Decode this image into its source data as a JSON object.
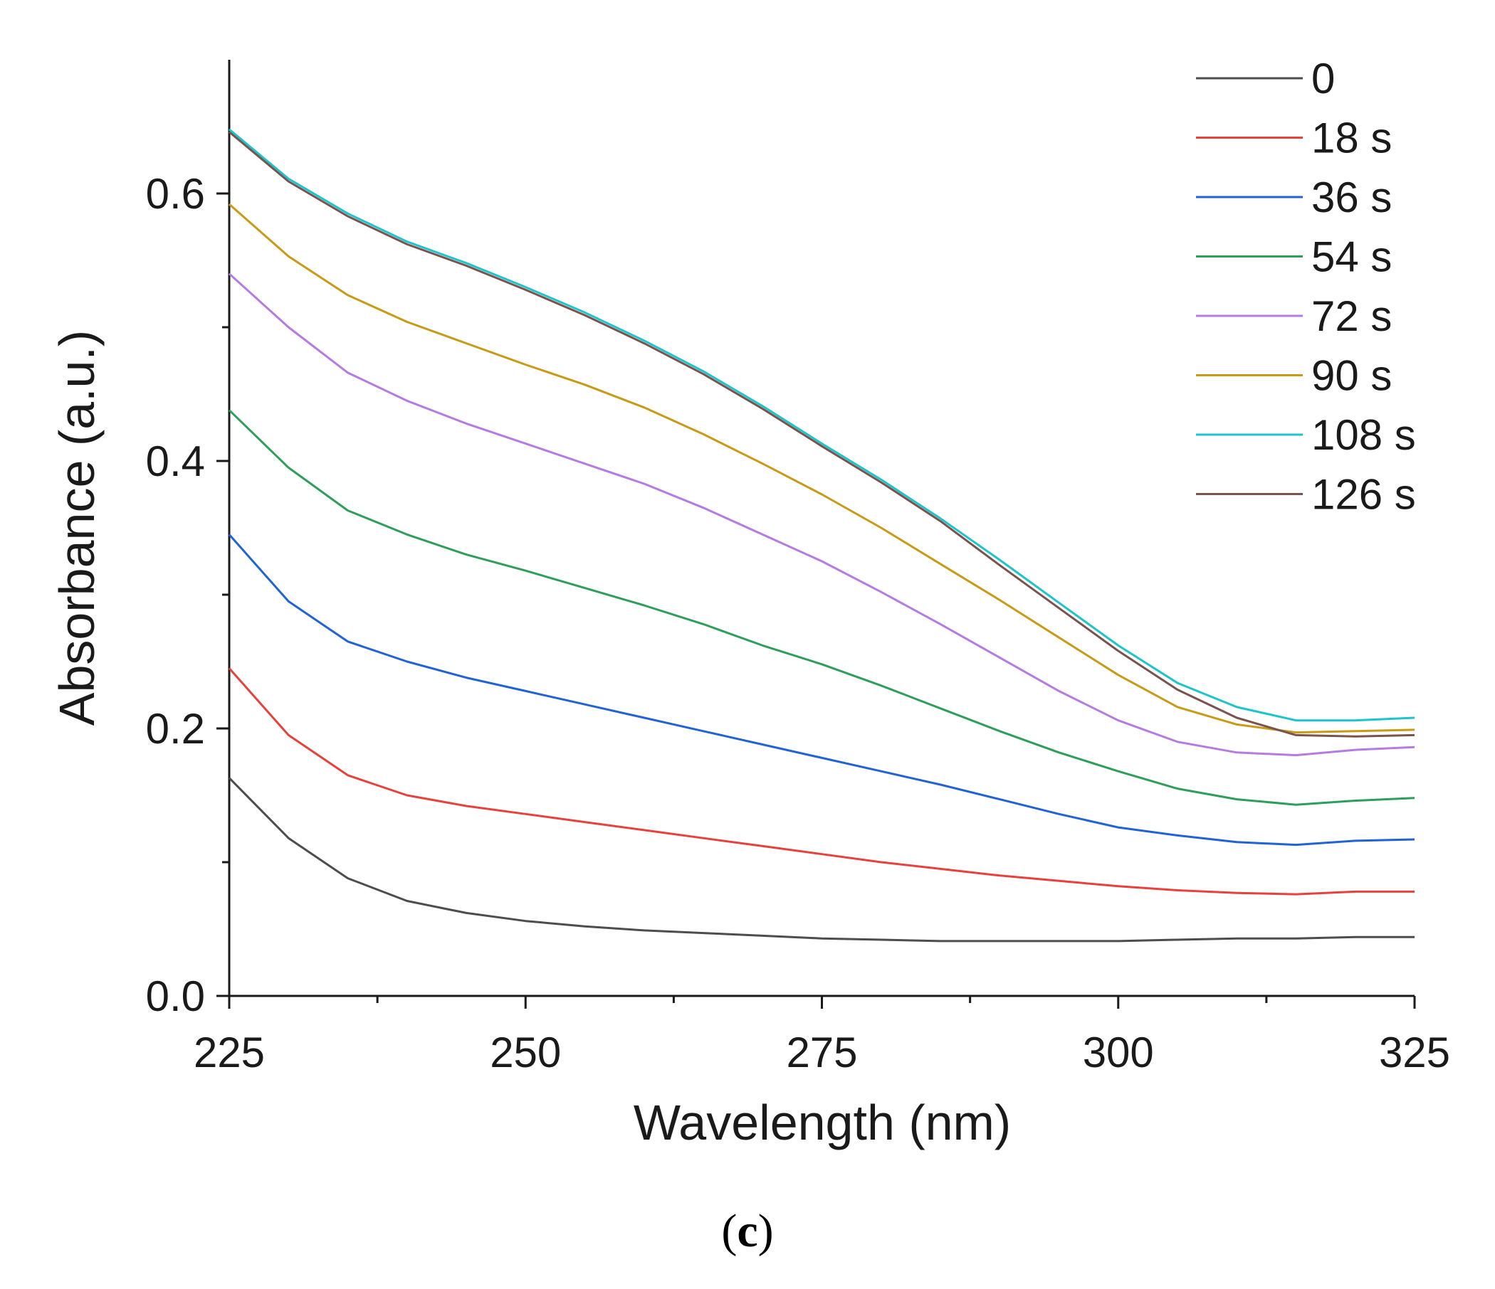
{
  "chart_data": {
    "type": "line",
    "xlabel": "Wavelength (nm)",
    "ylabel": "Absorbance (a.u.)",
    "xlim": [
      225,
      325
    ],
    "ylim": [
      0,
      0.7
    ],
    "x_ticks": [
      225,
      250,
      275,
      300,
      325
    ],
    "x_tick_labels": [
      "225",
      "250",
      "275",
      "300",
      "325"
    ],
    "x_minor_ticks": [
      237.5,
      262.5,
      287.5,
      312.5
    ],
    "y_ticks": [
      0,
      0.2,
      0.4,
      0.6
    ],
    "y_tick_labels": [
      "0.0",
      "0.2",
      "0.4",
      "0.6"
    ],
    "y_minor_ticks": [
      0.1,
      0.3,
      0.5
    ],
    "grid": false,
    "legend_position": "top-right",
    "x": [
      225,
      230,
      235,
      240,
      245,
      250,
      255,
      260,
      265,
      270,
      275,
      280,
      285,
      290,
      295,
      300,
      305,
      310,
      315,
      320,
      325
    ],
    "series": [
      {
        "name": "0",
        "color": "#4d4d4d",
        "values": [
          0.163,
          0.118,
          0.088,
          0.071,
          0.062,
          0.056,
          0.052,
          0.049,
          0.047,
          0.045,
          0.043,
          0.042,
          0.041,
          0.041,
          0.041,
          0.041,
          0.042,
          0.043,
          0.043,
          0.044,
          0.044
        ]
      },
      {
        "name": "18 s",
        "color": "#e8413c",
        "values": [
          0.245,
          0.195,
          0.165,
          0.15,
          0.142,
          0.136,
          0.13,
          0.124,
          0.118,
          0.112,
          0.106,
          0.1,
          0.095,
          0.09,
          0.086,
          0.082,
          0.079,
          0.077,
          0.076,
          0.078,
          0.078
        ]
      },
      {
        "name": "36 s",
        "color": "#1f63d6",
        "values": [
          0.345,
          0.295,
          0.265,
          0.25,
          0.238,
          0.228,
          0.218,
          0.208,
          0.198,
          0.188,
          0.178,
          0.168,
          0.158,
          0.147,
          0.136,
          0.126,
          0.12,
          0.115,
          0.113,
          0.116,
          0.117
        ]
      },
      {
        "name": "54 s",
        "color": "#2e9e5b",
        "values": [
          0.438,
          0.395,
          0.363,
          0.345,
          0.33,
          0.318,
          0.305,
          0.292,
          0.278,
          0.262,
          0.248,
          0.232,
          0.215,
          0.198,
          0.182,
          0.168,
          0.155,
          0.147,
          0.143,
          0.146,
          0.148
        ]
      },
      {
        "name": "72 s",
        "color": "#b57be3",
        "values": [
          0.54,
          0.5,
          0.466,
          0.445,
          0.428,
          0.413,
          0.398,
          0.383,
          0.365,
          0.345,
          0.325,
          0.302,
          0.278,
          0.253,
          0.228,
          0.206,
          0.19,
          0.182,
          0.18,
          0.184,
          0.186
        ]
      },
      {
        "name": "90 s",
        "color": "#c99a16",
        "values": [
          0.592,
          0.553,
          0.524,
          0.504,
          0.488,
          0.472,
          0.457,
          0.44,
          0.42,
          0.398,
          0.375,
          0.35,
          0.323,
          0.296,
          0.268,
          0.24,
          0.216,
          0.203,
          0.197,
          0.198,
          0.199
        ]
      },
      {
        "name": "108 s",
        "color": "#1cc4cc",
        "values": [
          0.648,
          0.611,
          0.585,
          0.564,
          0.548,
          0.53,
          0.511,
          0.49,
          0.467,
          0.441,
          0.413,
          0.386,
          0.357,
          0.326,
          0.294,
          0.262,
          0.234,
          0.216,
          0.206,
          0.206,
          0.208
        ]
      },
      {
        "name": "126 s",
        "color": "#7a534f",
        "values": [
          0.646,
          0.609,
          0.583,
          0.562,
          0.546,
          0.528,
          0.509,
          0.488,
          0.465,
          0.439,
          0.411,
          0.384,
          0.355,
          0.322,
          0.29,
          0.258,
          0.229,
          0.208,
          0.195,
          0.194,
          0.195
        ]
      }
    ]
  },
  "caption": {
    "open": "(",
    "letter": "c",
    "close": ")"
  }
}
